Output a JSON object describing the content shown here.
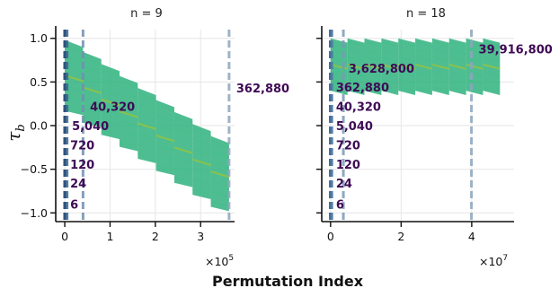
{
  "chart_data": [
    {
      "type": "scatter",
      "title": "n = 9",
      "ylabel": "τ",
      "ylabel_sub": "b",
      "xlim": [
        -20000,
        375000
      ],
      "ylim": [
        -1.1,
        1.1
      ],
      "x_ticks": [
        0,
        100000,
        200000,
        300000
      ],
      "x_tick_labels": [
        "0",
        "1",
        "2",
        "3"
      ],
      "x_multiplier": "×10",
      "x_multiplier_exp": "5",
      "y_ticks": [
        -1.0,
        -0.5,
        0.0,
        0.5,
        1.0
      ],
      "y_tick_labels": [
        "−1.0",
        "−0.5",
        "0.0",
        "0.5",
        "1.0"
      ],
      "grid": true,
      "point_color": "#2fb17e",
      "line_color": "#9ac43c",
      "scatter_band": {
        "x_range": [
          0,
          362880
        ],
        "num_bands": 9,
        "top_start": 0.98,
        "top_end": -0.12,
        "bottom_start": 0.12,
        "bottom_end": -0.98
      },
      "vlines": [
        {
          "x": 6,
          "color": "#1f3a5f"
        },
        {
          "x": 24,
          "color": "#1f3a5f"
        },
        {
          "x": 120,
          "color": "#2a4a70"
        },
        {
          "x": 720,
          "color": "#2e5580"
        },
        {
          "x": 5040,
          "color": "#3b6591"
        },
        {
          "x": 40320,
          "color": "#6f8fb0"
        },
        {
          "x": 362880,
          "color": "#8ea6c0"
        }
      ],
      "annotations": [
        {
          "text": "6",
          "x": 6,
          "y": -0.9
        },
        {
          "text": "24",
          "x": 24,
          "y": -0.66
        },
        {
          "text": "120",
          "x": 120,
          "y": -0.44
        },
        {
          "text": "720",
          "x": 720,
          "y": -0.22
        },
        {
          "text": "5,040",
          "x": 5040,
          "y": 0.0
        },
        {
          "text": "40,320",
          "x": 40320,
          "y": 0.22
        },
        {
          "text": "362,880",
          "x": 362880,
          "y": 0.43
        }
      ]
    },
    {
      "type": "scatter",
      "title": "n = 18",
      "xlim": [
        -2500000,
        52000000
      ],
      "ylim": [
        -1.1,
        1.1
      ],
      "x_ticks": [
        0,
        20000000,
        40000000
      ],
      "x_tick_labels": [
        "0",
        "2",
        "4"
      ],
      "x_multiplier": "×10",
      "x_multiplier_exp": "7",
      "y_ticks": [
        -1.0,
        -0.5,
        0.0,
        0.5,
        1.0
      ],
      "grid": true,
      "point_color": "#2fb17e",
      "line_color": "#9ac43c",
      "scatter_band": {
        "x_range": [
          0,
          48000000
        ],
        "num_bands": 10,
        "top": 1.0,
        "bottom": 0.35
      },
      "vlines": [
        {
          "x": 6,
          "color": "#1f3a5f"
        },
        {
          "x": 24,
          "color": "#1f3a5f"
        },
        {
          "x": 120,
          "color": "#2a4a70"
        },
        {
          "x": 720,
          "color": "#2e5580"
        },
        {
          "x": 5040,
          "color": "#3b6591"
        },
        {
          "x": 40320,
          "color": "#44709a"
        },
        {
          "x": 362880,
          "color": "#4e7aa3"
        },
        {
          "x": 3628800,
          "color": "#7b99b8"
        },
        {
          "x": 39916800,
          "color": "#8ea6c0"
        }
      ],
      "annotations": [
        {
          "text": "6",
          "x": 6,
          "y": -0.9
        },
        {
          "text": "24",
          "x": 24,
          "y": -0.66
        },
        {
          "text": "120",
          "x": 120,
          "y": -0.44
        },
        {
          "text": "720",
          "x": 720,
          "y": -0.22
        },
        {
          "text": "5,040",
          "x": 5040,
          "y": 0.0
        },
        {
          "text": "40,320",
          "x": 40320,
          "y": 0.22
        },
        {
          "text": "362,880",
          "x": 362880,
          "y": 0.44
        },
        {
          "text": "3,628,800",
          "x": 3628800,
          "y": 0.66
        },
        {
          "text": "39,916,800",
          "x": 39916800,
          "y": 0.88
        }
      ]
    }
  ],
  "xlabel": "Permutation Index"
}
